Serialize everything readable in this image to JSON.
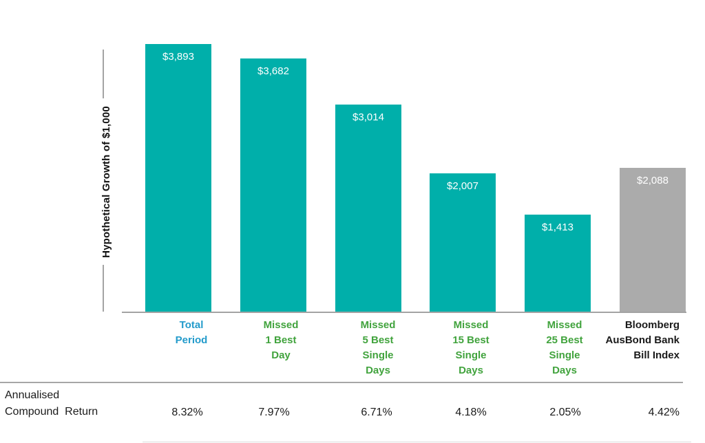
{
  "colors": {
    "bar_teal": "#00AFAA",
    "bar_gray": "#ABABAB",
    "label_blue": "#239BCB",
    "label_green": "#41A33D",
    "text_black": "#1A1A1A",
    "axis_gray": "#A3A3A3",
    "separator_gray": "#A6A6A6",
    "bar_value_text": "#FFFFFF"
  },
  "chart_data": {
    "type": "bar",
    "ylabel": "Hypothetical Growth of $1,000",
    "xlabel": "",
    "title": "",
    "grid": false,
    "legend": false,
    "ylim": [
      0,
      4000
    ],
    "categories": [
      "Total Period",
      "Missed 1 Best Day",
      "Missed 5 Best Single Days",
      "Missed 15 Best Single Days",
      "Missed 25 Best Single Days",
      "Bloomberg AusBond Bank Bill Index"
    ],
    "category_lines": [
      [
        "Total",
        "Period"
      ],
      [
        "Missed",
        "1 Best",
        "Day"
      ],
      [
        "Missed",
        "5 Best",
        "Single",
        "Days"
      ],
      [
        "Missed",
        "15 Best",
        "Single",
        "Days"
      ],
      [
        "Missed",
        "25 Best",
        "Single",
        "Days"
      ],
      [
        "Bloomberg",
        "AusBond Bank",
        "Bill Index"
      ]
    ],
    "category_colors": [
      "#239BCB",
      "#41A33D",
      "#41A33D",
      "#41A33D",
      "#41A33D",
      "#1A1A1A"
    ],
    "values": [
      3893,
      3682,
      3014,
      2007,
      1413,
      2088
    ],
    "value_labels": [
      "$3,893",
      "$3,682",
      "$3,014",
      "$2,007",
      "$1,413",
      "$2,088"
    ],
    "bar_colors": [
      "#00AFAA",
      "#00AFAA",
      "#00AFAA",
      "#00AFAA",
      "#00AFAA",
      "#ABABAB"
    ],
    "row_label_lines": [
      "Annualised",
      "Compound  Return"
    ],
    "row_values": [
      "8.32%",
      "7.97%",
      "6.71%",
      "4.18%",
      "2.05%",
      "4.42%"
    ]
  }
}
